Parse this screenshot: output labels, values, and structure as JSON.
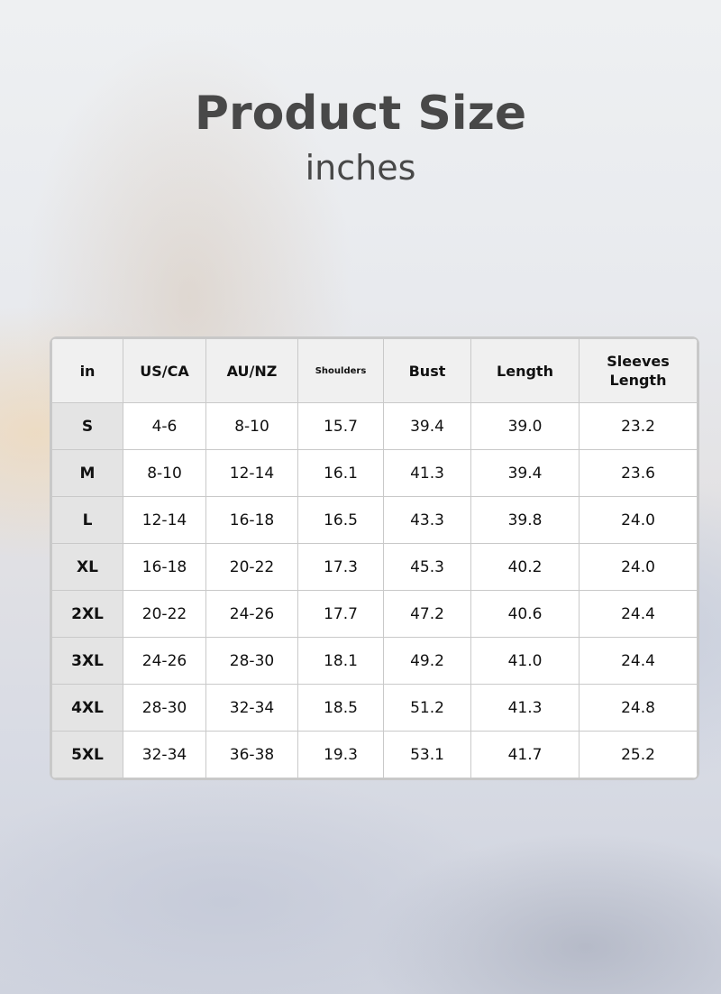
{
  "title": "Product Size",
  "subtitle": "inches",
  "headers": [
    "in",
    "US/CA",
    "AU/NZ",
    "Shoulders",
    "Bust",
    "Length",
    "Sleeves Length"
  ],
  "rows": [
    [
      "S",
      "4-6",
      "8-10",
      "15.7",
      "39.4",
      "39.0",
      "23.2"
    ],
    [
      "M",
      "8-10",
      "12-14",
      "16.1",
      "41.3",
      "39.4",
      "23.6"
    ],
    [
      "L",
      "12-14",
      "16-18",
      "16.5",
      "43.3",
      "39.8",
      "24.0"
    ],
    [
      "XL",
      "16-18",
      "20-22",
      "17.3",
      "45.3",
      "40.2",
      "24.0"
    ],
    [
      "2XL",
      "20-22",
      "24-26",
      "17.7",
      "47.2",
      "40.6",
      "24.4"
    ],
    [
      "3XL",
      "24-26",
      "28-30",
      "18.1",
      "49.2",
      "41.0",
      "24.4"
    ],
    [
      "4XL",
      "28-30",
      "32-34",
      "18.5",
      "51.2",
      "41.3",
      "24.8"
    ],
    [
      "5XL",
      "32-34",
      "36-38",
      "19.3",
      "53.1",
      "41.7",
      "25.2"
    ]
  ]
}
